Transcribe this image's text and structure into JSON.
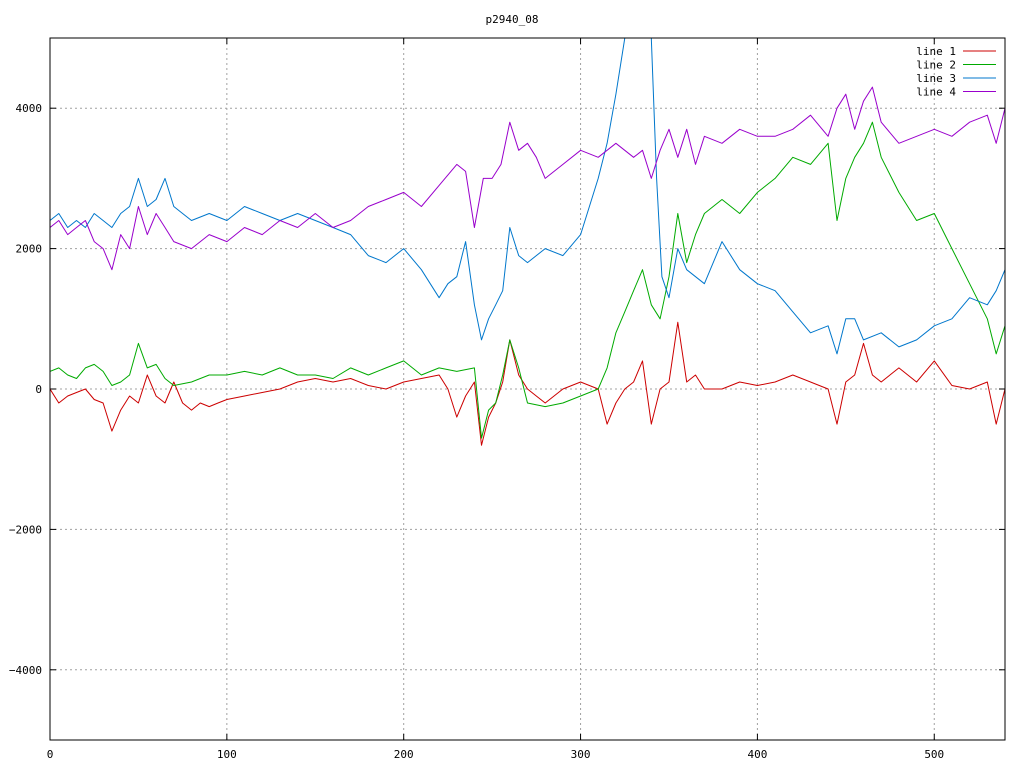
{
  "chart_data": {
    "type": "line",
    "title": "p2940_08",
    "xlabel": "",
    "ylabel": "",
    "xlim": [
      0,
      540
    ],
    "ylim": [
      -5000,
      5000
    ],
    "x_ticks": [
      0,
      100,
      200,
      300,
      400,
      500
    ],
    "y_ticks": [
      -4000,
      -2000,
      0,
      2000,
      4000
    ],
    "x_tick_labels": [
      "0",
      "100",
      "200",
      "300",
      "400",
      "500"
    ],
    "y_tick_labels": [
      "−4000",
      "−2000",
      "0",
      "2000",
      "4000"
    ],
    "grid": true,
    "legend_position": "top-right",
    "series": [
      {
        "name": "line 1",
        "color": "#cc0000",
        "x": [
          0,
          5,
          10,
          15,
          20,
          25,
          30,
          35,
          40,
          45,
          50,
          55,
          60,
          65,
          70,
          75,
          80,
          85,
          90,
          95,
          100,
          110,
          120,
          130,
          140,
          150,
          160,
          170,
          180,
          190,
          200,
          210,
          220,
          225,
          230,
          235,
          240,
          244,
          248,
          252,
          256,
          260,
          265,
          270,
          275,
          280,
          290,
          300,
          310,
          315,
          320,
          325,
          330,
          335,
          340,
          345,
          350,
          355,
          360,
          365,
          370,
          380,
          390,
          400,
          410,
          420,
          430,
          440,
          445,
          450,
          455,
          460,
          465,
          470,
          480,
          490,
          500,
          510,
          520,
          530,
          535,
          540
        ],
        "y": [
          0,
          -200,
          -100,
          -50,
          0,
          -150,
          -200,
          -600,
          -300,
          -100,
          -200,
          200,
          -100,
          -200,
          100,
          -200,
          -300,
          -200,
          -250,
          -200,
          -150,
          -100,
          -50,
          0,
          100,
          150,
          100,
          150,
          50,
          0,
          100,
          150,
          200,
          0,
          -400,
          -100,
          100,
          -800,
          -400,
          -200,
          100,
          700,
          200,
          0,
          -100,
          -200,
          0,
          100,
          0,
          -500,
          -200,
          0,
          100,
          400,
          -500,
          0,
          100,
          950,
          100,
          200,
          0,
          0,
          100,
          50,
          100,
          200,
          100,
          0,
          -500,
          100,
          200,
          650,
          200,
          100,
          300,
          100,
          400,
          50,
          0,
          100,
          -500,
          0
        ]
      },
      {
        "name": "line 2",
        "color": "#00aa00",
        "x": [
          0,
          5,
          10,
          15,
          20,
          25,
          30,
          35,
          40,
          45,
          50,
          55,
          60,
          65,
          70,
          80,
          90,
          100,
          110,
          120,
          130,
          140,
          150,
          160,
          170,
          180,
          190,
          200,
          210,
          220,
          230,
          240,
          244,
          248,
          252,
          256,
          260,
          265,
          270,
          280,
          290,
          300,
          310,
          315,
          320,
          325,
          330,
          335,
          340,
          345,
          350,
          355,
          360,
          365,
          370,
          380,
          390,
          400,
          410,
          420,
          430,
          440,
          445,
          450,
          455,
          460,
          465,
          470,
          480,
          490,
          500,
          510,
          520,
          530,
          535,
          540
        ],
        "y": [
          250,
          300,
          200,
          150,
          300,
          350,
          250,
          50,
          100,
          200,
          650,
          300,
          350,
          150,
          50,
          100,
          200,
          200,
          250,
          200,
          300,
          200,
          200,
          150,
          300,
          200,
          300,
          400,
          200,
          300,
          250,
          300,
          -700,
          -300,
          -200,
          200,
          700,
          300,
          -200,
          -250,
          -200,
          -100,
          0,
          300,
          800,
          1100,
          1400,
          1700,
          1200,
          1000,
          1600,
          2500,
          1800,
          2200,
          2500,
          2700,
          2500,
          2800,
          3000,
          3300,
          3200,
          3500,
          2400,
          3000,
          3300,
          3500,
          3800,
          3300,
          2800,
          2400,
          2500,
          2000,
          1500,
          1000,
          500,
          900
        ]
      },
      {
        "name": "line 3",
        "color": "#0077cc",
        "x": [
          0,
          5,
          10,
          15,
          20,
          25,
          30,
          35,
          40,
          45,
          50,
          55,
          60,
          65,
          70,
          75,
          80,
          90,
          100,
          110,
          120,
          130,
          140,
          150,
          160,
          170,
          180,
          190,
          200,
          210,
          220,
          225,
          230,
          235,
          240,
          244,
          248,
          252,
          256,
          260,
          265,
          270,
          280,
          290,
          300,
          305,
          310,
          315,
          320,
          325,
          330,
          335,
          340,
          343,
          346,
          350,
          355,
          360,
          370,
          380,
          390,
          400,
          410,
          420,
          430,
          440,
          445,
          450,
          455,
          460,
          470,
          480,
          490,
          500,
          510,
          520,
          530,
          535,
          540
        ],
        "y": [
          2400,
          2500,
          2300,
          2400,
          2300,
          2500,
          2400,
          2300,
          2500,
          2600,
          3000,
          2600,
          2700,
          3000,
          2600,
          2500,
          2400,
          2500,
          2400,
          2600,
          2500,
          2400,
          2500,
          2400,
          2300,
          2200,
          1900,
          1800,
          2000,
          1700,
          1300,
          1500,
          1600,
          2100,
          1200,
          700,
          1000,
          1200,
          1400,
          2300,
          1900,
          1800,
          2000,
          1900,
          2200,
          2600,
          3000,
          3500,
          4200,
          5000,
          5000,
          5000,
          5000,
          3000,
          1600,
          1300,
          2000,
          1700,
          1500,
          2100,
          1700,
          1500,
          1400,
          1100,
          800,
          900,
          500,
          1000,
          1000,
          700,
          800,
          600,
          700,
          900,
          1000,
          1300,
          1200,
          1400,
          1700
        ]
      },
      {
        "name": "line 4",
        "color": "#9900cc",
        "x": [
          0,
          5,
          10,
          15,
          20,
          25,
          30,
          35,
          40,
          45,
          50,
          55,
          60,
          65,
          70,
          80,
          90,
          100,
          110,
          120,
          130,
          140,
          150,
          160,
          170,
          180,
          190,
          200,
          210,
          220,
          230,
          235,
          240,
          245,
          250,
          255,
          260,
          265,
          270,
          275,
          280,
          290,
          300,
          310,
          320,
          330,
          335,
          340,
          345,
          350,
          355,
          360,
          365,
          370,
          380,
          390,
          400,
          410,
          420,
          430,
          440,
          445,
          450,
          455,
          460,
          465,
          470,
          480,
          490,
          500,
          510,
          520,
          530,
          535,
          540
        ],
        "y": [
          2300,
          2400,
          2200,
          2300,
          2400,
          2100,
          2000,
          1700,
          2200,
          2000,
          2600,
          2200,
          2500,
          2300,
          2100,
          2000,
          2200,
          2100,
          2300,
          2200,
          2400,
          2300,
          2500,
          2300,
          2400,
          2600,
          2700,
          2800,
          2600,
          2900,
          3200,
          3100,
          2300,
          3000,
          3000,
          3200,
          3800,
          3400,
          3500,
          3300,
          3000,
          3200,
          3400,
          3300,
          3500,
          3300,
          3400,
          3000,
          3400,
          3700,
          3300,
          3700,
          3200,
          3600,
          3500,
          3700,
          3600,
          3600,
          3700,
          3900,
          3600,
          4000,
          4200,
          3700,
          4100,
          4300,
          3800,
          3500,
          3600,
          3700,
          3600,
          3800,
          3900,
          3500,
          4000
        ]
      }
    ]
  }
}
